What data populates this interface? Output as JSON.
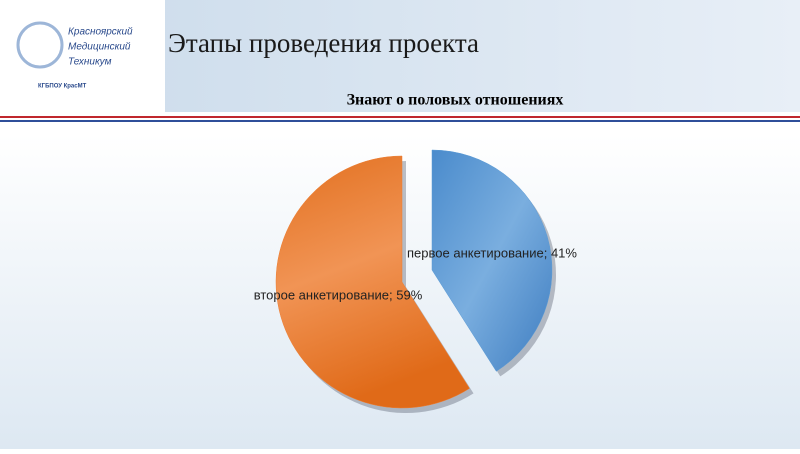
{
  "header": {
    "title": "Этапы проведения проекта",
    "logo": {
      "lines": [
        "Красноярский",
        "Медицинский",
        "Техникум"
      ],
      "caption": "КГБПОУ КрасМТ"
    }
  },
  "chart_data": {
    "type": "pie",
    "title": "Знают о половых отношениях",
    "categories": [
      "первое анкетирование",
      "второе анкетирование"
    ],
    "values": [
      41,
      59
    ],
    "value_labels": [
      "первое анкетирование; 41%",
      "второе анкетирование; 59%"
    ],
    "colors": [
      "#5b9bd5",
      "#ed7d31"
    ]
  }
}
